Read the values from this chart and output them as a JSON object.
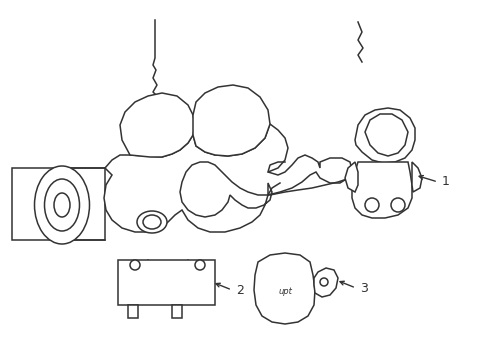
{
  "bg_color": "#ffffff",
  "line_color": "#4a4a4a",
  "line_width": 1.0,
  "label_fontsize": 8,
  "fig_width": 4.89,
  "fig_height": 3.6,
  "dpi": 100,
  "xlim": [
    0,
    489
  ],
  "ylim": [
    0,
    360
  ]
}
